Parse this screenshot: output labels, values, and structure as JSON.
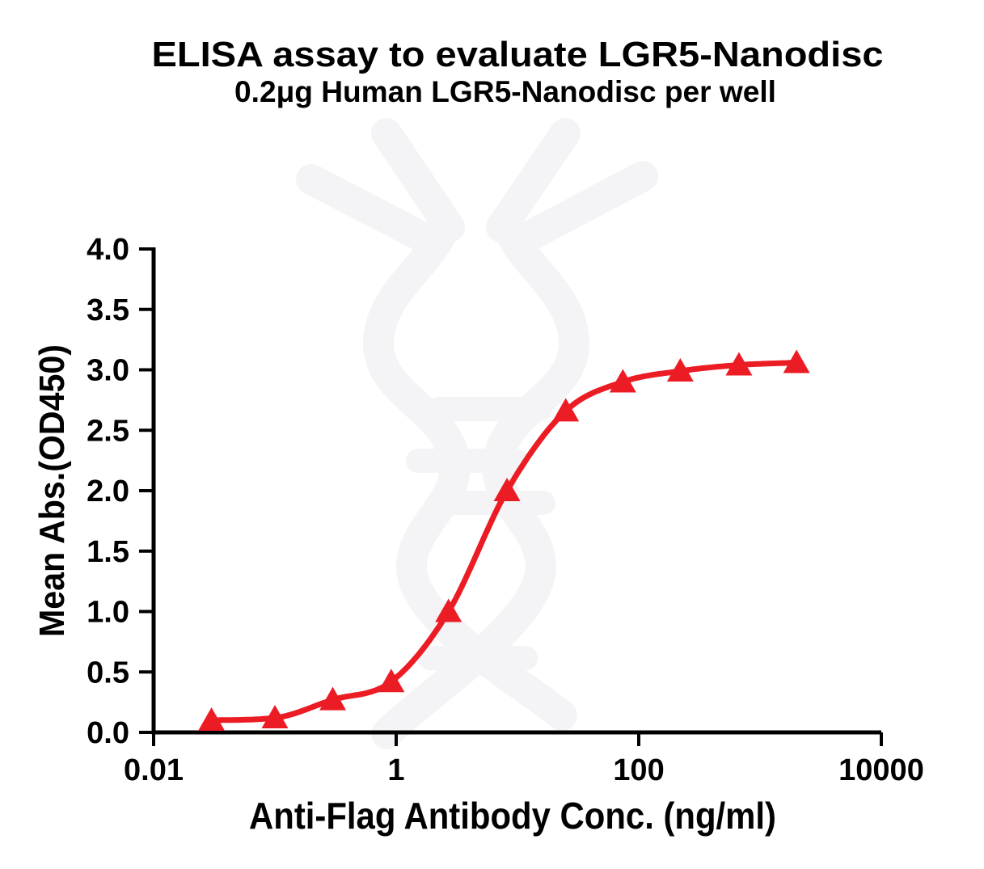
{
  "chart_data": {
    "type": "scatter",
    "title": "ELISA assay to evaluate LGR5-Nanodisc",
    "subtitle": "0.2μg Human LGR5-Nanodisc per well",
    "xlabel": "Anti-Flag Antibody Conc. (ng/ml)",
    "ylabel": "Mean Abs.(OD450)",
    "x_scale": "log10",
    "xlim": [
      0.01,
      10000
    ],
    "ylim": [
      0.0,
      4.0
    ],
    "grid": false,
    "legend": false,
    "x_ticks": [
      {
        "value": 0.01,
        "label": "0.01"
      },
      {
        "value": 1,
        "label": "1"
      },
      {
        "value": 100,
        "label": "100"
      },
      {
        "value": 10000,
        "label": "10000"
      }
    ],
    "y_ticks": [
      {
        "value": 0.0,
        "label": "0.0"
      },
      {
        "value": 0.5,
        "label": "0.5"
      },
      {
        "value": 1.0,
        "label": "1.0"
      },
      {
        "value": 1.5,
        "label": "1.5"
      },
      {
        "value": 2.0,
        "label": "2.0"
      },
      {
        "value": 2.5,
        "label": "2.5"
      },
      {
        "value": 3.0,
        "label": "3.0"
      },
      {
        "value": 3.5,
        "label": "3.5"
      },
      {
        "value": 4.0,
        "label": "4.0"
      }
    ],
    "series": [
      {
        "name": "Human LGR5-Nanodisc",
        "marker": "filled-triangle-up",
        "color": "#EC1C24",
        "curve": "sigmoidal-dose-response-fit",
        "points": [
          {
            "x": 0.03,
            "y": 0.1
          },
          {
            "x": 0.1,
            "y": 0.12
          },
          {
            "x": 0.3,
            "y": 0.27
          },
          {
            "x": 0.91,
            "y": 0.42
          },
          {
            "x": 2.7,
            "y": 1.0
          },
          {
            "x": 8.2,
            "y": 2.0
          },
          {
            "x": 25,
            "y": 2.66
          },
          {
            "x": 74,
            "y": 2.9
          },
          {
            "x": 220,
            "y": 2.99
          },
          {
            "x": 670,
            "y": 3.04
          },
          {
            "x": 2000,
            "y": 3.06
          }
        ]
      }
    ],
    "axis_color": "#000000",
    "text_color": "#000000",
    "background_color": "#FFFFFF",
    "watermark": {
      "icon": "dna-antibody-logo-watermark-icon",
      "color": "#F4F4F6"
    }
  }
}
